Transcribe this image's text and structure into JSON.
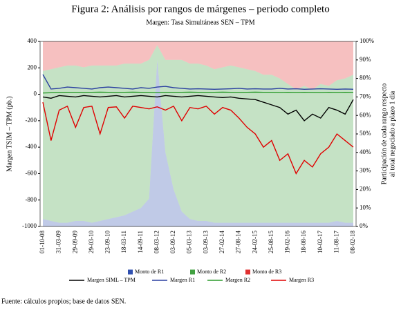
{
  "chart_data": {
    "type": "line",
    "title": "Figura 2: Análisis por rangos de márgenes – periodo completo",
    "subtitle": "Margen: Tasa Simultáneas SEN – TPM",
    "y_label": "Margen TSIM – TPM (pb.)",
    "y2_label": [
      "Participación de cada rango respecto",
      "al total negociado a plazo 1 día"
    ],
    "source": "Fuente: cálculos propios; base de datos SEN.",
    "categories": [
      "01-10-08",
      null,
      "31-03-09",
      null,
      "29-09-09",
      null,
      "29-03-10",
      null,
      "23-09-10",
      null,
      "18-03-11",
      null,
      "14-09-11",
      null,
      "08-03-12",
      null,
      "03-09-12",
      null,
      "05-03-13",
      null,
      "03-09-13",
      null,
      "27-02-14",
      null,
      "27-08-14",
      null,
      "24-02-15",
      null,
      "25-08-15",
      null,
      "19-02-16",
      null,
      "18-08-16",
      null,
      "10-02-17",
      null,
      "11-08-17",
      null,
      "08-02-18"
    ],
    "ylim": [
      -1000,
      400
    ],
    "yticks": [
      400,
      200,
      0,
      -200,
      -400,
      -600,
      -800,
      -1000
    ],
    "y2lim": [
      0,
      100
    ],
    "y2ticks": [
      {
        "value": 100,
        "label": "100%"
      },
      {
        "value": 90,
        "label": "90%"
      },
      {
        "value": 80,
        "label": "80%"
      },
      {
        "value": 70,
        "label": "70%"
      },
      {
        "value": 60,
        "label": "60%"
      },
      {
        "value": 50,
        "label": "50%"
      },
      {
        "value": 40,
        "label": "40%"
      },
      {
        "value": 30,
        "label": "30%"
      },
      {
        "value": 20,
        "label": "20%"
      },
      {
        "value": 10,
        "label": "10%"
      },
      {
        "value": 0,
        "label": "0%"
      }
    ],
    "series": [
      {
        "name": "Monto de R1",
        "type": "area",
        "axis": "y2",
        "stacked": true,
        "color": "#3050b0",
        "values": [
          4,
          3,
          2,
          2,
          3,
          3,
          2,
          3,
          4,
          5,
          6,
          8,
          10,
          15,
          90,
          40,
          20,
          8,
          4,
          3,
          3,
          2,
          2,
          2,
          2,
          2,
          2,
          2,
          2,
          2,
          2,
          2,
          2,
          2,
          2,
          2,
          3,
          2,
          2
        ]
      },
      {
        "name": "Monto de R2",
        "type": "area",
        "axis": "y2",
        "stacked": true,
        "color": "#40a040",
        "values": [
          80,
          82,
          84,
          85,
          84,
          83,
          85,
          84,
          83,
          82,
          82,
          80,
          78,
          75,
          8,
          50,
          70,
          82,
          84,
          85,
          84,
          83,
          84,
          85,
          84,
          83,
          82,
          80,
          80,
          78,
          75,
          72,
          74,
          72,
          75,
          74,
          76,
          78,
          80
        ]
      },
      {
        "name": "Monto de R3",
        "type": "area",
        "axis": "y2",
        "stacked": true,
        "color": "#e03030",
        "values": [
          16,
          15,
          14,
          13,
          13,
          14,
          13,
          13,
          13,
          13,
          12,
          12,
          12,
          10,
          2,
          10,
          10,
          10,
          12,
          12,
          13,
          15,
          14,
          13,
          14,
          15,
          16,
          18,
          18,
          20,
          23,
          26,
          24,
          26,
          23,
          24,
          21,
          20,
          18
        ]
      },
      {
        "name": "Margen SIML – TPM",
        "type": "line",
        "color": "#000000",
        "values": [
          -20,
          -30,
          -10,
          -15,
          -20,
          -10,
          -15,
          -20,
          -15,
          -10,
          -20,
          -15,
          -10,
          -15,
          -20,
          -10,
          -15,
          -20,
          -15,
          -10,
          -15,
          -20,
          -25,
          -20,
          -30,
          -35,
          -40,
          -60,
          -80,
          -100,
          -150,
          -120,
          -200,
          -150,
          -180,
          -100,
          -120,
          -150,
          -40
        ]
      },
      {
        "name": "Margen R1",
        "type": "line",
        "color": "#2a3fa0",
        "values": [
          150,
          40,
          45,
          55,
          50,
          45,
          40,
          50,
          55,
          50,
          45,
          40,
          50,
          45,
          55,
          60,
          50,
          45,
          40,
          42,
          40,
          38,
          40,
          42,
          45,
          40,
          42,
          40,
          40,
          45,
          40,
          42,
          38,
          40,
          42,
          40,
          38,
          40,
          38
        ]
      },
      {
        "name": "Margen R2",
        "type": "line",
        "color": "#2a9a2a",
        "values": [
          10,
          12,
          14,
          15,
          15,
          14,
          15,
          16,
          15,
          14,
          15,
          16,
          15,
          14,
          12,
          15,
          15,
          15,
          16,
          15,
          14,
          15,
          16,
          15,
          14,
          15,
          16,
          15,
          15,
          14,
          15,
          14,
          15,
          14,
          13,
          15,
          14,
          15,
          14
        ]
      },
      {
        "name": "Margen R3",
        "type": "line",
        "color": "#e00000",
        "values": [
          -60,
          -350,
          -120,
          -90,
          -250,
          -100,
          -90,
          -300,
          -100,
          -95,
          -180,
          -90,
          -100,
          -110,
          -95,
          -120,
          -90,
          -200,
          -100,
          -110,
          -90,
          -150,
          -100,
          -120,
          -180,
          -250,
          -300,
          -400,
          -350,
          -500,
          -450,
          -600,
          -500,
          -550,
          -450,
          -400,
          -300,
          -350,
          -400
        ]
      }
    ]
  }
}
